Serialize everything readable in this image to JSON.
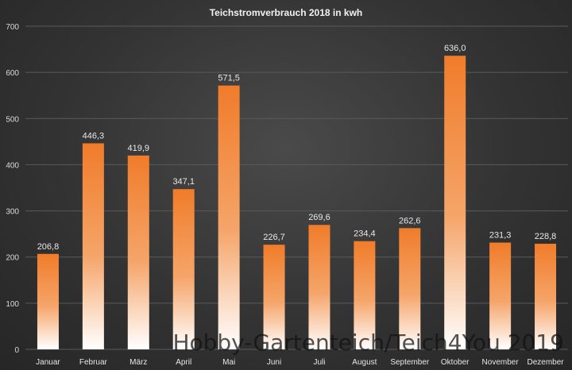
{
  "chart_data": {
    "type": "bar",
    "title": "Teichstromverbrauch  2018 in kwh",
    "xlabel": "",
    "ylabel": "",
    "ylim": [
      0,
      700
    ],
    "yticks": [
      0,
      100,
      200,
      300,
      400,
      500,
      600,
      700
    ],
    "grid": true,
    "categories": [
      "Januar",
      "Februar",
      "März",
      "April",
      "Mai",
      "Juni",
      "Juli",
      "August",
      "September",
      "Oktober",
      "November",
      "Dezember"
    ],
    "values": [
      206.8,
      446.3,
      419.9,
      347.1,
      571.5,
      226.7,
      269.6,
      234.4,
      262.6,
      636.0,
      231.3,
      228.8
    ],
    "data_labels": [
      "206,8",
      "446,3",
      "419,9",
      "347,1",
      "571,5",
      "226,7",
      "269,6",
      "234,4",
      "262,6",
      "636,0",
      "231,3",
      "228,8"
    ],
    "bar_color_top": "#f07c2a",
    "bar_color_bottom": "#ffffff"
  },
  "watermark": "Hobby-Gartenteich/Teich4You 2019"
}
